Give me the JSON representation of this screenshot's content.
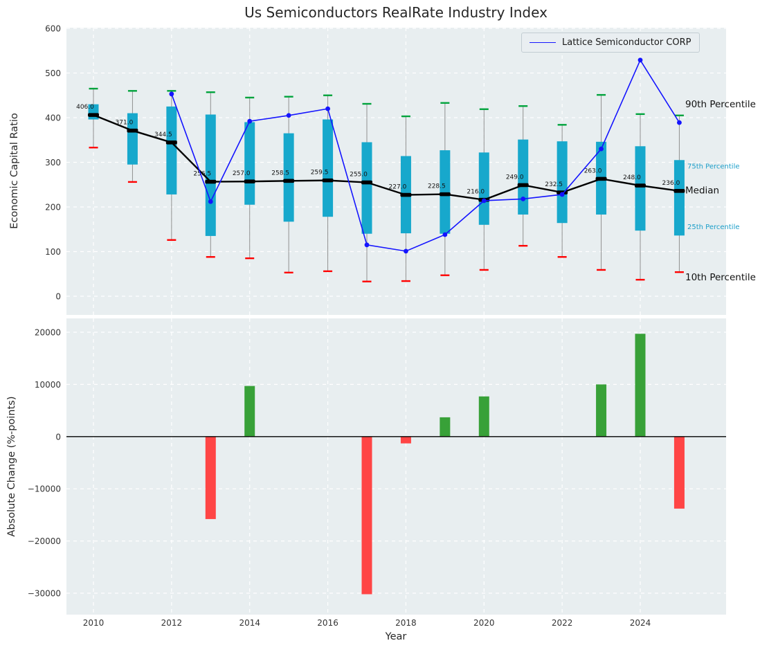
{
  "title": "Us Semiconductors RealRate Industry Index",
  "legend": {
    "label": "Lattice Semiconductor CORP"
  },
  "colors": {
    "panel_bg": "#e8eef0",
    "grid": "#ffffff",
    "box": "#17a8cc",
    "whisker": "#909090",
    "median": "#000000",
    "company_line": "#1414ff",
    "p90_cap": "#00a33c",
    "p10_cap": "#ff0000",
    "bar_positive": "#38a138",
    "bar_negative": "#ff4545",
    "tick_text": "#333333",
    "title_text": "#262626",
    "annotation_accent": "#1b9ec9",
    "annotation_dark": "#111111"
  },
  "chart_data": [
    {
      "type": "boxplot+line",
      "title": "Us Semiconductors RealRate Industry Index",
      "ylabel": "Economic Capital Ratio",
      "ylim": [
        0,
        600
      ],
      "yticks": [
        0,
        100,
        200,
        300,
        400,
        500,
        600
      ],
      "grid": true,
      "legend_position": "upper right",
      "years": [
        2010,
        2011,
        2012,
        2013,
        2014,
        2015,
        2016,
        2017,
        2018,
        2019,
        2020,
        2021,
        2022,
        2023,
        2024,
        2025
      ],
      "p90": [
        465,
        460,
        460,
        457,
        445,
        447,
        450,
        431,
        403,
        433,
        419,
        426,
        384,
        451,
        408,
        405
      ],
      "p75": [
        430,
        410,
        425,
        407,
        390,
        365,
        396,
        345,
        314,
        327,
        322,
        351,
        347,
        346,
        336,
        305
      ],
      "median": [
        406.0,
        371.0,
        344.5,
        256.5,
        257.0,
        258.5,
        259.5,
        255.0,
        227.0,
        228.5,
        216.0,
        249.0,
        232.5,
        263.0,
        248.0,
        236.0
      ],
      "p25": [
        396,
        295,
        228,
        135,
        205,
        167,
        178,
        140,
        141,
        140,
        160,
        183,
        164,
        183,
        147,
        136
      ],
      "p10": [
        333,
        256,
        126,
        88,
        85,
        53,
        56,
        33,
        34,
        47,
        59,
        113,
        88,
        59,
        37,
        54
      ],
      "company": {
        "name": "Lattice Semiconductor CORP",
        "years": [
          2012,
          2013,
          2014,
          2015,
          2016,
          2017,
          2018,
          2019,
          2020,
          2021,
          2022,
          2023,
          2024,
          2025
        ],
        "values": [
          453,
          212,
          392,
          405,
          420,
          115,
          101,
          138,
          214,
          218,
          228,
          330,
          529,
          389
        ]
      },
      "annotations": [
        {
          "label": "90th Percentile",
          "value": 430,
          "size": 13.5,
          "color": "#111111",
          "x": 990
        },
        {
          "label": "75th Percentile",
          "value": 293,
          "size": 10,
          "color": "#1b9ec9",
          "x": 993
        },
        {
          "label": "Median",
          "value": 237,
          "size": 13.5,
          "color": "#111111",
          "x": 990
        },
        {
          "label": "25th Percentile",
          "value": 157,
          "size": 10,
          "color": "#1b9ec9",
          "x": 993
        },
        {
          "label": "10th Percentile",
          "value": 43,
          "size": 13.5,
          "color": "#111111",
          "x": 990
        }
      ]
    },
    {
      "type": "bar",
      "ylabel": "Absolute Change (%-points)",
      "xlabel": "Year",
      "ylim": [
        -34000,
        23000
      ],
      "yticks": [
        -30000,
        -20000,
        -10000,
        0,
        10000,
        20000
      ],
      "xticks": [
        2010,
        2012,
        2014,
        2016,
        2018,
        2020,
        2022,
        2024
      ],
      "grid": true,
      "years": [
        2010,
        2011,
        2012,
        2013,
        2014,
        2015,
        2016,
        2017,
        2018,
        2019,
        2020,
        2021,
        2022,
        2023,
        2024,
        2025
      ],
      "values": [
        0,
        0,
        0,
        -15800,
        9700,
        0,
        0,
        -30200,
        -1300,
        3700,
        7700,
        0,
        0,
        10000,
        19700,
        -13800
      ]
    }
  ]
}
